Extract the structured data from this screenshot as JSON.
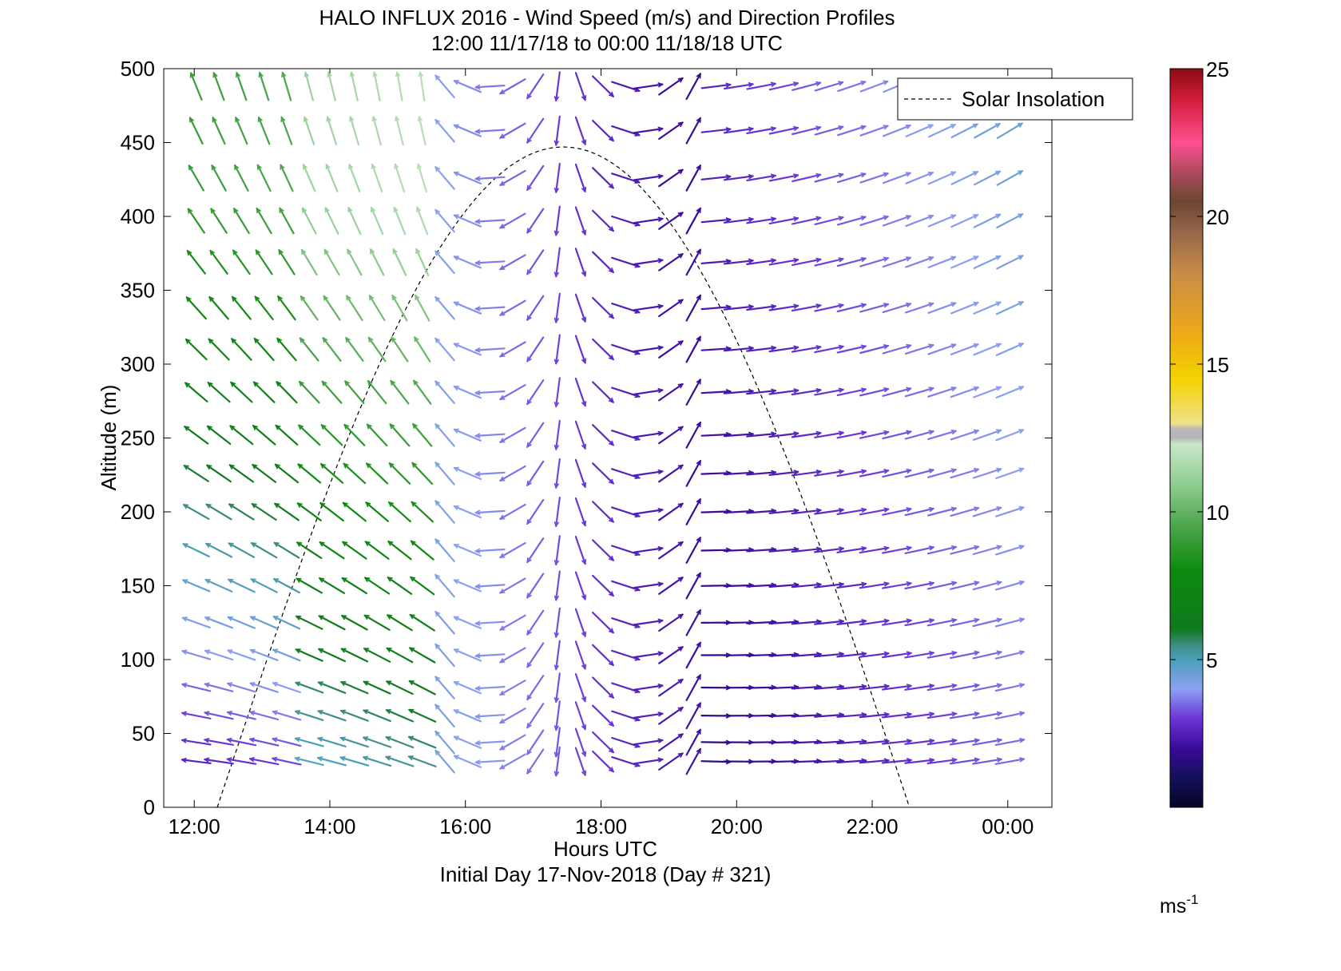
{
  "chart_data": {
    "type": "wind barbs (quiver) with line",
    "title_line1": "HALO INFLUX 2016 - Wind Speed (m/s) and Direction Profiles",
    "title_line2": "12:00 11/17/18 to 00:00 11/18/18  UTC",
    "xlabel": "Hours UTC",
    "xlabel2": "Initial Day 17-Nov-2018 (Day # 321)",
    "ylabel": "Altitude (m)",
    "xlim": [
      11.55,
      24.65
    ],
    "ylim": [
      0,
      500
    ],
    "x_ticks": [
      {
        "value": 12,
        "label": "12:00"
      },
      {
        "value": 14,
        "label": "14:00"
      },
      {
        "value": 16,
        "label": "16:00"
      },
      {
        "value": 18,
        "label": "18:00"
      },
      {
        "value": 20,
        "label": "20:00"
      },
      {
        "value": 22,
        "label": "22:00"
      },
      {
        "value": 24,
        "label": "00:00"
      }
    ],
    "y_ticks": [
      0,
      50,
      100,
      150,
      200,
      250,
      300,
      350,
      400,
      450,
      500
    ],
    "legend": {
      "label": "Solar Insolation",
      "placement": "top-right"
    },
    "colorbar": {
      "min": 0,
      "max": 25,
      "ticks": [
        5,
        10,
        15,
        20,
        25
      ],
      "unit_label": "ms",
      "unit_exp": "-1",
      "stops": [
        [
          0,
          "#050527"
        ],
        [
          1,
          "#14105a"
        ],
        [
          2,
          "#3a0a9a"
        ],
        [
          3,
          "#6a35d6"
        ],
        [
          4,
          "#8ca0f2"
        ],
        [
          5,
          "#4aa0b8"
        ],
        [
          5.5,
          "#3f8c82"
        ],
        [
          6,
          "#0f7a1e"
        ],
        [
          8,
          "#0d8a0d"
        ],
        [
          9.5,
          "#4aa54a"
        ],
        [
          11,
          "#93cf93"
        ],
        [
          12.3,
          "#c9e6c9"
        ],
        [
          12.5,
          "#b5b5b5"
        ],
        [
          12.8,
          "#b8b8b8"
        ],
        [
          13,
          "#f0e08a"
        ],
        [
          14.5,
          "#f3d300"
        ],
        [
          16,
          "#eeaa18"
        ],
        [
          18,
          "#c98e45"
        ],
        [
          19.5,
          "#96654a"
        ],
        [
          20.5,
          "#6b4630"
        ],
        [
          21.5,
          "#b04a5e"
        ],
        [
          22.5,
          "#ff5090"
        ],
        [
          24,
          "#d01b38"
        ],
        [
          25,
          "#8a0b12"
        ]
      ]
    },
    "solar_insolation_curve": {
      "x_start": 12.34,
      "x_end": 22.55,
      "x_peak": 17.45,
      "peak_altitude": 447,
      "shape": "sine"
    },
    "wind_grid": {
      "times_first": 12.03,
      "times_last": 24.03,
      "n_times": 37,
      "altitudes": [
        31,
        44,
        62,
        81,
        103,
        125,
        150,
        174,
        200,
        226,
        252,
        281,
        310,
        338,
        369,
        397,
        426,
        458,
        488
      ],
      "gap_times": [
        19.7,
        20.05
      ],
      "description": "Each arrow: direction from the vector (u,v), colour from speed (m/s)."
    },
    "wind_regimes": [
      {
        "name": "morning",
        "t_range": [
          12.0,
          15.5
        ],
        "dir_deg_low": 275,
        "dir_deg_high": 340,
        "speed_low": 2.5,
        "speed_high": 9.5
      },
      {
        "name": "midday",
        "t_range": [
          15.5,
          19.5
        ],
        "dir_deg": 0,
        "speed_low": 1.5,
        "speed_high": 4.5
      },
      {
        "name": "evening",
        "t_range": [
          20.2,
          24.0
        ],
        "dir_deg_low": 85,
        "dir_deg_high": 65,
        "speed_low": 1.5,
        "speed_high": 5.0
      }
    ]
  }
}
